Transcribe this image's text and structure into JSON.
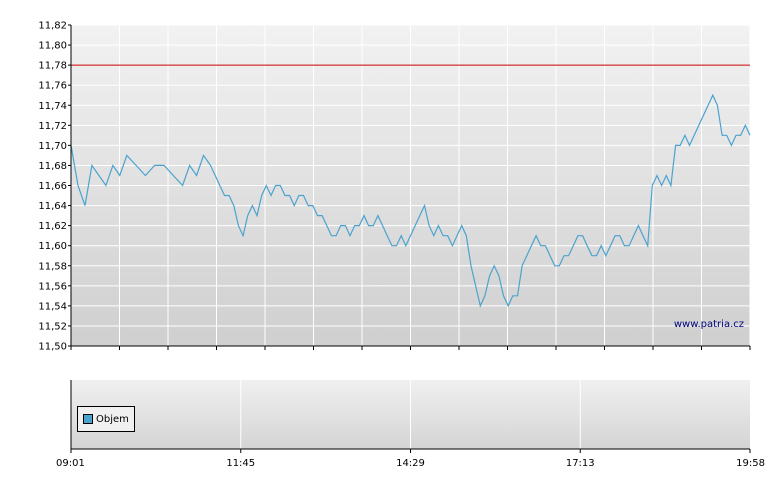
{
  "chart_data": [
    {
      "type": "line",
      "y_ticks": [
        "11,82",
        "11,80",
        "11,78",
        "11,76",
        "11,74",
        "11,72",
        "11,70",
        "11,68",
        "11,66",
        "11,64",
        "11,62",
        "11,60",
        "11,58",
        "11,56",
        "11,54",
        "11,52",
        "11,50"
      ],
      "ylim": [
        11.5,
        11.82
      ],
      "reference_line": 11.78,
      "watermark": "www.patria.cz",
      "grid": true,
      "colors": {
        "line": "#4ba3cf",
        "reference": "#cc0000",
        "grid": "#ffffff"
      },
      "series": [
        {
          "points": [
            [
              0,
              11.7
            ],
            [
              3,
              11.66
            ],
            [
              6,
              11.64
            ],
            [
              9,
              11.68
            ],
            [
              12,
              11.67
            ],
            [
              15,
              11.66
            ],
            [
              18,
              11.68
            ],
            [
              21,
              11.67
            ],
            [
              24,
              11.69
            ],
            [
              28,
              11.68
            ],
            [
              32,
              11.67
            ],
            [
              36,
              11.68
            ],
            [
              40,
              11.68
            ],
            [
              44,
              11.67
            ],
            [
              48,
              11.66
            ],
            [
              51,
              11.68
            ],
            [
              54,
              11.67
            ],
            [
              57,
              11.69
            ],
            [
              60,
              11.68
            ],
            [
              62,
              11.67
            ],
            [
              64,
              11.66
            ],
            [
              66,
              11.65
            ],
            [
              68,
              11.65
            ],
            [
              70,
              11.64
            ],
            [
              72,
              11.62
            ],
            [
              74,
              11.61
            ],
            [
              76,
              11.63
            ],
            [
              78,
              11.64
            ],
            [
              80,
              11.63
            ],
            [
              82,
              11.65
            ],
            [
              84,
              11.66
            ],
            [
              86,
              11.65
            ],
            [
              88,
              11.66
            ],
            [
              90,
              11.66
            ],
            [
              92,
              11.65
            ],
            [
              94,
              11.65
            ],
            [
              96,
              11.64
            ],
            [
              98,
              11.65
            ],
            [
              100,
              11.65
            ],
            [
              102,
              11.64
            ],
            [
              104,
              11.64
            ],
            [
              106,
              11.63
            ],
            [
              108,
              11.63
            ],
            [
              110,
              11.62
            ],
            [
              112,
              11.61
            ],
            [
              114,
              11.61
            ],
            [
              116,
              11.62
            ],
            [
              118,
              11.62
            ],
            [
              120,
              11.61
            ],
            [
              122,
              11.62
            ],
            [
              124,
              11.62
            ],
            [
              126,
              11.63
            ],
            [
              128,
              11.62
            ],
            [
              130,
              11.62
            ],
            [
              132,
              11.63
            ],
            [
              134,
              11.62
            ],
            [
              136,
              11.61
            ],
            [
              138,
              11.6
            ],
            [
              140,
              11.6
            ],
            [
              142,
              11.61
            ],
            [
              144,
              11.6
            ],
            [
              146,
              11.61
            ],
            [
              148,
              11.62
            ],
            [
              150,
              11.63
            ],
            [
              152,
              11.64
            ],
            [
              154,
              11.62
            ],
            [
              156,
              11.61
            ],
            [
              158,
              11.62
            ],
            [
              160,
              11.61
            ],
            [
              162,
              11.61
            ],
            [
              164,
              11.6
            ],
            [
              166,
              11.61
            ],
            [
              168,
              11.62
            ],
            [
              170,
              11.61
            ],
            [
              172,
              11.58
            ],
            [
              174,
              11.56
            ],
            [
              176,
              11.54
            ],
            [
              178,
              11.55
            ],
            [
              180,
              11.57
            ],
            [
              182,
              11.58
            ],
            [
              184,
              11.57
            ],
            [
              186,
              11.55
            ],
            [
              188,
              11.54
            ],
            [
              190,
              11.55
            ],
            [
              192,
              11.55
            ],
            [
              194,
              11.58
            ],
            [
              196,
              11.59
            ],
            [
              198,
              11.6
            ],
            [
              200,
              11.61
            ],
            [
              202,
              11.6
            ],
            [
              204,
              11.6
            ],
            [
              206,
              11.59
            ],
            [
              208,
              11.58
            ],
            [
              210,
              11.58
            ],
            [
              212,
              11.59
            ],
            [
              214,
              11.59
            ],
            [
              216,
              11.6
            ],
            [
              218,
              11.61
            ],
            [
              220,
              11.61
            ],
            [
              222,
              11.6
            ],
            [
              224,
              11.59
            ],
            [
              226,
              11.59
            ],
            [
              228,
              11.6
            ],
            [
              230,
              11.59
            ],
            [
              232,
              11.6
            ],
            [
              234,
              11.61
            ],
            [
              236,
              11.61
            ],
            [
              238,
              11.6
            ],
            [
              240,
              11.6
            ],
            [
              242,
              11.61
            ],
            [
              244,
              11.62
            ],
            [
              246,
              11.61
            ],
            [
              248,
              11.6
            ],
            [
              250,
              11.66
            ],
            [
              252,
              11.67
            ],
            [
              254,
              11.66
            ],
            [
              256,
              11.67
            ],
            [
              258,
              11.66
            ],
            [
              260,
              11.7
            ],
            [
              262,
              11.7
            ],
            [
              264,
              11.71
            ],
            [
              266,
              11.7
            ],
            [
              268,
              11.71
            ],
            [
              270,
              11.72
            ],
            [
              272,
              11.73
            ],
            [
              274,
              11.74
            ],
            [
              276,
              11.75
            ],
            [
              278,
              11.74
            ],
            [
              280,
              11.71
            ],
            [
              282,
              11.71
            ],
            [
              284,
              11.7
            ],
            [
              286,
              11.71
            ],
            [
              288,
              11.71
            ],
            [
              290,
              11.72
            ],
            [
              292,
              11.71
            ]
          ]
        }
      ],
      "xlim": [
        0,
        292
      ]
    },
    {
      "type": "bar",
      "x_ticks": [
        "09:01",
        "11:45",
        "14:29",
        "17:13",
        "19:58"
      ],
      "legend": {
        "label": "Objem",
        "placement": "bottom-left"
      },
      "series": [
        {
          "name": "Objem",
          "values": []
        }
      ]
    }
  ]
}
